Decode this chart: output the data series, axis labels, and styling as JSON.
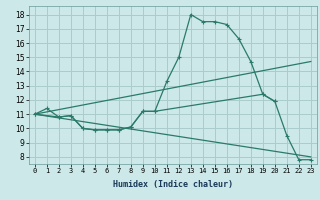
{
  "xlabel": "Humidex (Indice chaleur)",
  "bg_color": "#cce8e8",
  "grid_color": "#aacccc",
  "line_color": "#2a7a6a",
  "xlim": [
    -0.5,
    23.5
  ],
  "ylim": [
    7.5,
    18.6
  ],
  "xticks": [
    0,
    1,
    2,
    3,
    4,
    5,
    6,
    7,
    8,
    9,
    10,
    11,
    12,
    13,
    14,
    15,
    16,
    17,
    18,
    19,
    20,
    21,
    22,
    23
  ],
  "yticks": [
    8,
    9,
    10,
    11,
    12,
    13,
    14,
    15,
    16,
    17,
    18
  ],
  "line1_x": [
    0,
    1,
    2,
    3,
    4,
    5,
    6,
    7,
    8,
    9,
    10,
    11,
    12,
    13,
    14,
    15,
    16,
    17,
    18,
    19,
    20,
    21,
    22,
    23
  ],
  "line1_y": [
    11.0,
    11.4,
    10.8,
    10.9,
    10.0,
    9.9,
    9.9,
    9.9,
    10.1,
    11.2,
    11.2,
    13.3,
    15.0,
    18.0,
    17.5,
    17.5,
    17.3,
    16.3,
    14.7,
    12.4,
    11.9,
    9.5,
    7.8,
    7.8
  ],
  "line2_x": [
    0,
    23
  ],
  "line2_y": [
    11.0,
    14.7
  ],
  "line3_x": [
    0,
    23
  ],
  "line3_y": [
    11.0,
    8.0
  ],
  "line4_x": [
    0,
    2,
    3,
    4,
    5,
    6,
    7,
    8,
    9,
    10,
    19,
    20
  ],
  "line4_y": [
    11.0,
    10.8,
    10.9,
    10.0,
    9.9,
    9.9,
    9.9,
    10.1,
    11.2,
    11.2,
    12.4,
    11.9
  ]
}
